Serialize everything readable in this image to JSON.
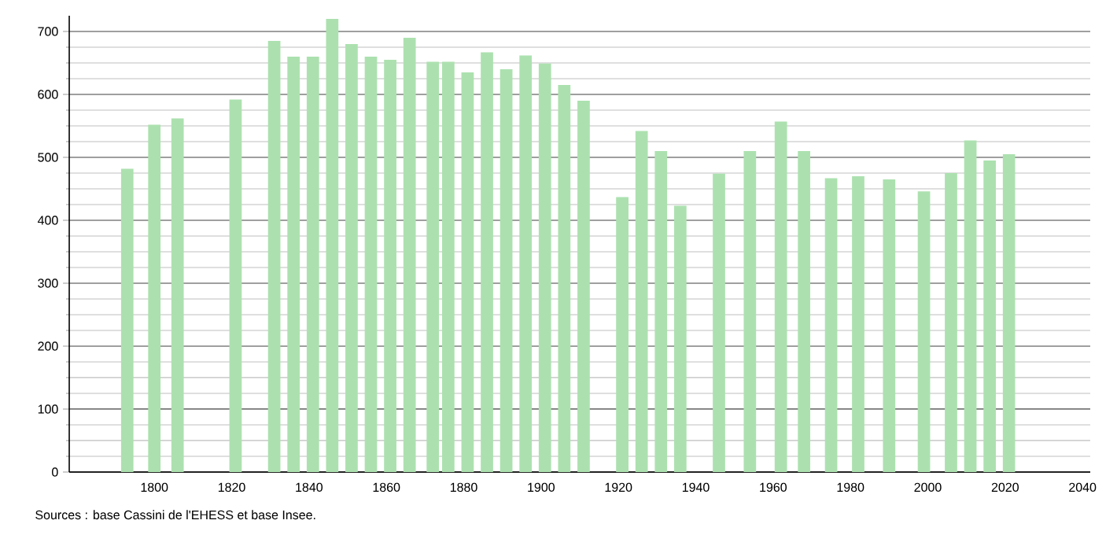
{
  "chart_data": {
    "type": "bar",
    "x": [
      1793,
      1800,
      1806,
      1821,
      1831,
      1836,
      1841,
      1846,
      1851,
      1856,
      1861,
      1866,
      1872,
      1876,
      1881,
      1886,
      1891,
      1896,
      1901,
      1906,
      1911,
      1921,
      1926,
      1931,
      1936,
      1946,
      1954,
      1962,
      1968,
      1975,
      1982,
      1990,
      1999,
      2006,
      2011,
      2016,
      2021
    ],
    "values": [
      482,
      552,
      562,
      592,
      685,
      660,
      660,
      720,
      680,
      660,
      655,
      690,
      652,
      652,
      635,
      667,
      640,
      662,
      649,
      615,
      590,
      437,
      542,
      510,
      423,
      474,
      510,
      557,
      510,
      467,
      470,
      465,
      446,
      475,
      527,
      495,
      505
    ],
    "color": "#ace1af",
    "xlim": [
      1778,
      2042
    ],
    "xticks": [
      1800,
      1820,
      1840,
      1860,
      1880,
      1900,
      1920,
      1940,
      1960,
      1980,
      2000,
      2020,
      2040
    ],
    "ylim": [
      0,
      725
    ],
    "yticks": [
      0,
      100,
      200,
      300,
      400,
      500,
      600,
      700
    ],
    "grid": "y",
    "annotations": [
      "Sources : base Cassini de l'EHESS et base Insee."
    ]
  }
}
